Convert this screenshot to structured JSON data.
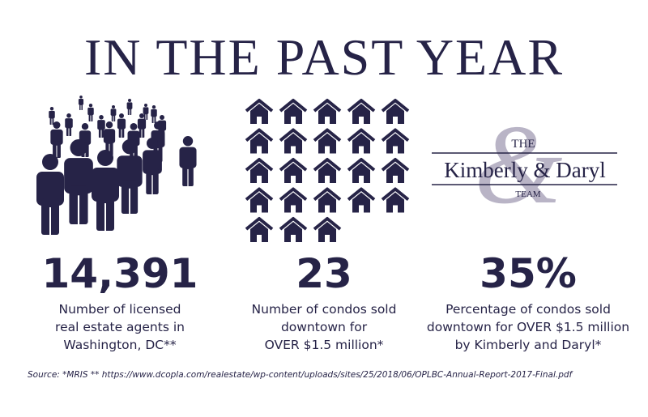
{
  "header": {
    "title": "IN THE PAST YEAR"
  },
  "logo": {
    "top": "THE",
    "name": "Kimberly & Daryl",
    "bottom": "TEAM"
  },
  "stats": [
    {
      "value": "14,391",
      "lines": [
        "Number of licensed",
        "real estate agents in",
        "Washington, DC**"
      ]
    },
    {
      "value": "23",
      "lines": [
        "Number of condos sold",
        "downtown for",
        "OVER $1.5 million*"
      ]
    },
    {
      "value": "35%",
      "lines": [
        "Percentage of condos sold",
        "downtown for OVER $1.5 million",
        "by Kimberly and Daryl*"
      ]
    }
  ],
  "source": "Source: *MRIS ** https://www.dcopla.com/realestate/wp-content/uploads/sites/25/2018/06/OPLBC-Annual-Report-2017-Final.pdf"
}
